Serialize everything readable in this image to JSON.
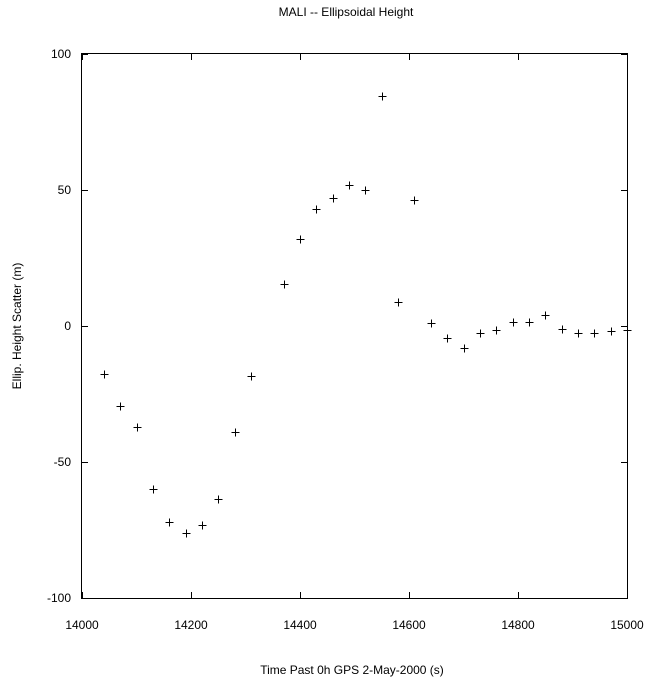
{
  "chart_data": {
    "type": "scatter",
    "title": "MALI -- Ellipsoidal Height",
    "xlabel": "Time Past 0h GPS 2-May-2000  (s)",
    "ylabel": "Ellip. Height Scatter  (m)",
    "xlim": [
      14000,
      15000
    ],
    "ylim": [
      -100,
      100
    ],
    "xticks": [
      14000,
      14200,
      14400,
      14600,
      14800,
      15000
    ],
    "yticks": [
      100,
      50,
      0,
      -50,
      -100
    ],
    "grid": false,
    "marker": "+",
    "series": [
      {
        "x": [
          14040,
          14070,
          14100,
          14130,
          14160,
          14190,
          14220,
          14250,
          14280,
          14310,
          14370,
          14400,
          14430,
          14460,
          14490,
          14520,
          14550,
          14580,
          14610,
          14640,
          14670,
          14700,
          14730,
          14760,
          14790,
          14820,
          14850,
          14880,
          14910,
          14940,
          14970,
          15000
        ],
        "y": [
          -17.5,
          -29.5,
          -37,
          -60,
          -72,
          -76,
          -73,
          -63.5,
          -39,
          -18.5,
          15.5,
          32,
          43,
          47,
          52,
          50,
          84.5,
          9,
          46.5,
          1,
          -4.5,
          -8,
          -2.5,
          -1.5,
          1.5,
          1.5,
          4,
          -1,
          -2.5,
          -2.5,
          -2,
          -1.5
        ]
      }
    ]
  }
}
